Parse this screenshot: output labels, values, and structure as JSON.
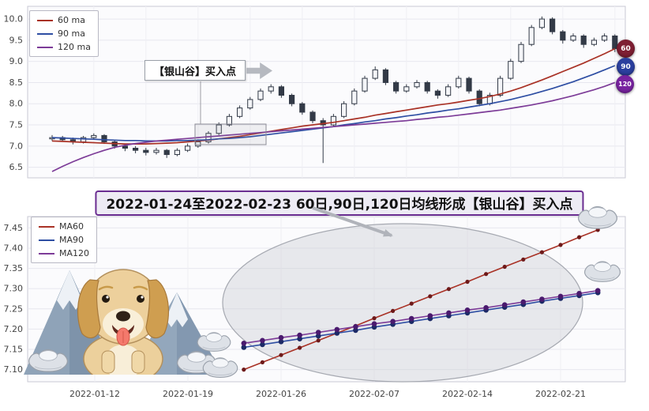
{
  "banner": {
    "text": "2022-01-24至2022-02-23 60日,90日,120日均线形成【银山谷】买入点"
  },
  "top_chart": {
    "annotation": "【银山谷】买入点",
    "legend": [
      {
        "label": "60 ma",
        "color": "#a93226"
      },
      {
        "label": "90 ma",
        "color": "#2e4ea3"
      },
      {
        "label": "120 ma",
        "color": "#7d3c98"
      }
    ],
    "badges": [
      {
        "label": "60",
        "color": "#7e1f33"
      },
      {
        "label": "90",
        "color": "#2b3f9e"
      },
      {
        "label": "120",
        "color": "#7823a0"
      }
    ]
  },
  "bottom_chart": {
    "legend": [
      {
        "label": "MA60",
        "color": "#a93226"
      },
      {
        "label": "MA90",
        "color": "#2e4ea3"
      },
      {
        "label": "MA120",
        "color": "#7d3c98"
      }
    ]
  },
  "icons": {
    "ingot": "silver-ingot-icon",
    "dog": "golden-retriever-illustration",
    "mountains": "snow-mountain-illustration",
    "block_arrow": "right-block-arrow-icon",
    "flow_arrow": "gray-pointer-arrow-icon"
  },
  "chart_data": [
    {
      "type": "candlestick",
      "title": "",
      "xlabel": "",
      "ylabel": "",
      "grid": true,
      "legend_position": "upper-left",
      "ylim": [
        6.25,
        10.3
      ],
      "yticks": [
        6.5,
        7.0,
        7.5,
        8.0,
        8.5,
        9.0,
        9.5,
        10.0
      ],
      "candles": [
        [
          7.18,
          7.26,
          7.12,
          7.2
        ],
        [
          7.2,
          7.24,
          7.1,
          7.15
        ],
        [
          7.15,
          7.2,
          7.04,
          7.1
        ],
        [
          7.1,
          7.24,
          7.06,
          7.2
        ],
        [
          7.2,
          7.3,
          7.16,
          7.25
        ],
        [
          7.25,
          7.28,
          7.05,
          7.1
        ],
        [
          7.1,
          7.14,
          6.94,
          7.0
        ],
        [
          7.0,
          7.05,
          6.88,
          6.95
        ],
        [
          6.95,
          7.0,
          6.83,
          6.9
        ],
        [
          6.9,
          6.96,
          6.78,
          6.85
        ],
        [
          6.85,
          6.96,
          6.8,
          6.9
        ],
        [
          6.9,
          6.93,
          6.72,
          6.8
        ],
        [
          6.8,
          6.95,
          6.76,
          6.9
        ],
        [
          6.9,
          7.06,
          6.86,
          7.0
        ],
        [
          7.0,
          7.16,
          6.96,
          7.1
        ],
        [
          7.1,
          7.35,
          7.06,
          7.3
        ],
        [
          7.3,
          7.56,
          7.26,
          7.5
        ],
        [
          7.5,
          7.76,
          7.46,
          7.7
        ],
        [
          7.7,
          7.96,
          7.66,
          7.9
        ],
        [
          7.9,
          8.16,
          7.86,
          8.1
        ],
        [
          8.1,
          8.36,
          8.06,
          8.3
        ],
        [
          8.3,
          8.46,
          8.24,
          8.4
        ],
        [
          8.4,
          8.44,
          8.14,
          8.2
        ],
        [
          8.2,
          8.24,
          7.94,
          8.0
        ],
        [
          8.0,
          8.04,
          7.74,
          7.8
        ],
        [
          7.8,
          7.84,
          7.54,
          7.6
        ],
        [
          7.6,
          7.66,
          6.6,
          7.5
        ],
        [
          7.5,
          7.76,
          7.46,
          7.7
        ],
        [
          7.7,
          8.06,
          7.66,
          8.0
        ],
        [
          8.0,
          8.36,
          7.96,
          8.3
        ],
        [
          8.3,
          8.66,
          8.26,
          8.6
        ],
        [
          8.6,
          8.88,
          8.56,
          8.8
        ],
        [
          8.8,
          8.84,
          8.44,
          8.5
        ],
        [
          8.5,
          8.54,
          8.24,
          8.3
        ],
        [
          8.3,
          8.46,
          8.26,
          8.4
        ],
        [
          8.4,
          8.56,
          8.36,
          8.5
        ],
        [
          8.5,
          8.54,
          8.24,
          8.3
        ],
        [
          8.3,
          8.34,
          8.12,
          8.2
        ],
        [
          8.2,
          8.46,
          8.16,
          8.4
        ],
        [
          8.4,
          8.66,
          8.36,
          8.6
        ],
        [
          8.6,
          8.64,
          8.24,
          8.3
        ],
        [
          8.3,
          8.34,
          7.94,
          8.0
        ],
        [
          8.0,
          8.26,
          7.96,
          8.2
        ],
        [
          8.2,
          8.66,
          8.16,
          8.6
        ],
        [
          8.6,
          9.06,
          8.56,
          9.0
        ],
        [
          9.0,
          9.46,
          8.96,
          9.4
        ],
        [
          9.4,
          9.86,
          9.36,
          9.8
        ],
        [
          9.8,
          10.06,
          9.76,
          10.0
        ],
        [
          10.0,
          10.04,
          9.64,
          9.7
        ],
        [
          9.7,
          9.74,
          9.42,
          9.5
        ],
        [
          9.5,
          9.66,
          9.46,
          9.6
        ],
        [
          9.6,
          9.64,
          9.32,
          9.4
        ],
        [
          9.4,
          9.56,
          9.36,
          9.5
        ],
        [
          9.5,
          9.66,
          9.46,
          9.6
        ],
        [
          9.6,
          9.64,
          9.22,
          9.3
        ]
      ],
      "series": [
        {
          "name": "60 ma",
          "color": "#a93226",
          "values": [
            7.12,
            7.11,
            7.1,
            7.09,
            7.08,
            7.07,
            7.06,
            7.05,
            7.05,
            7.05,
            7.06,
            7.07,
            7.08,
            7.1,
            7.12,
            7.14,
            7.17,
            7.2,
            7.23,
            7.27,
            7.31,
            7.35,
            7.39,
            7.43,
            7.47,
            7.5,
            7.53,
            7.56,
            7.6,
            7.64,
            7.68,
            7.73,
            7.77,
            7.81,
            7.85,
            7.89,
            7.93,
            7.97,
            8.0,
            8.04,
            8.08,
            8.12,
            8.17,
            8.23,
            8.3,
            8.38,
            8.47,
            8.56,
            8.66,
            8.76,
            8.86,
            8.96,
            9.07,
            9.18,
            9.3
          ]
        },
        {
          "name": "90 ma",
          "color": "#2e4ea3",
          "values": [
            7.2,
            7.19,
            7.18,
            7.17,
            7.16,
            7.15,
            7.14,
            7.13,
            7.13,
            7.12,
            7.12,
            7.12,
            7.13,
            7.13,
            7.14,
            7.15,
            7.17,
            7.18,
            7.2,
            7.22,
            7.25,
            7.28,
            7.31,
            7.34,
            7.37,
            7.4,
            7.43,
            7.46,
            7.5,
            7.53,
            7.57,
            7.6,
            7.64,
            7.67,
            7.71,
            7.74,
            7.78,
            7.81,
            7.85,
            7.88,
            7.92,
            7.96,
            8.0,
            8.05,
            8.1,
            8.16,
            8.22,
            8.29,
            8.36,
            8.44,
            8.52,
            8.61,
            8.7,
            8.8,
            8.9
          ]
        },
        {
          "name": "120 ma",
          "color": "#7d3c98",
          "values": [
            6.4,
            6.52,
            6.63,
            6.73,
            6.82,
            6.9,
            6.97,
            7.02,
            7.06,
            7.09,
            7.12,
            7.14,
            7.16,
            7.18,
            7.2,
            7.22,
            7.24,
            7.26,
            7.28,
            7.3,
            7.32,
            7.34,
            7.36,
            7.38,
            7.4,
            7.42,
            7.44,
            7.46,
            7.48,
            7.5,
            7.52,
            7.54,
            7.56,
            7.58,
            7.6,
            7.63,
            7.65,
            7.68,
            7.7,
            7.73,
            7.76,
            7.79,
            7.82,
            7.85,
            7.89,
            7.93,
            7.97,
            8.02,
            8.07,
            8.13,
            8.19,
            8.26,
            8.33,
            8.41,
            8.5
          ]
        }
      ],
      "annotation": "【银山谷】买入点"
    },
    {
      "type": "line",
      "title": "",
      "xlabel": "",
      "ylabel": "",
      "grid": true,
      "legend_position": "upper-left",
      "ylim": [
        7.07,
        7.478
      ],
      "yticks": [
        7.1,
        7.15,
        7.2,
        7.25,
        7.3,
        7.35,
        7.4,
        7.45
      ],
      "xtick_labels": [
        "2022-01-12",
        "2022-01-19",
        "2022-01-26",
        "2022-02-07",
        "2022-02-14",
        "2022-02-21"
      ],
      "xtick_positions": [
        0,
        5,
        10,
        15,
        20,
        25
      ],
      "start_index": 8,
      "series": [
        {
          "name": "MA60",
          "color": "#a93226",
          "dot": "#6e1a1a",
          "values": [
            7.1,
            7.118,
            7.136,
            7.154,
            7.172,
            7.19,
            7.208,
            7.227,
            7.245,
            7.263,
            7.281,
            7.299,
            7.317,
            7.336,
            7.354,
            7.372,
            7.39,
            7.408,
            7.427,
            7.445
          ]
        },
        {
          "name": "MA90",
          "color": "#2e4ea3",
          "dot": "#1c2a66",
          "values": [
            7.155,
            7.162,
            7.169,
            7.176,
            7.183,
            7.19,
            7.197,
            7.205,
            7.212,
            7.219,
            7.226,
            7.233,
            7.24,
            7.247,
            7.254,
            7.261,
            7.269,
            7.276,
            7.283,
            7.29
          ]
        },
        {
          "name": "MA120",
          "color": "#7d3c98",
          "dot": "#4a1a6e",
          "values": [
            7.165,
            7.172,
            7.179,
            7.185,
            7.192,
            7.199,
            7.206,
            7.213,
            7.219,
            7.226,
            7.233,
            7.24,
            7.247,
            7.253,
            7.26,
            7.267,
            7.274,
            7.281,
            7.288,
            7.295
          ]
        }
      ]
    }
  ]
}
